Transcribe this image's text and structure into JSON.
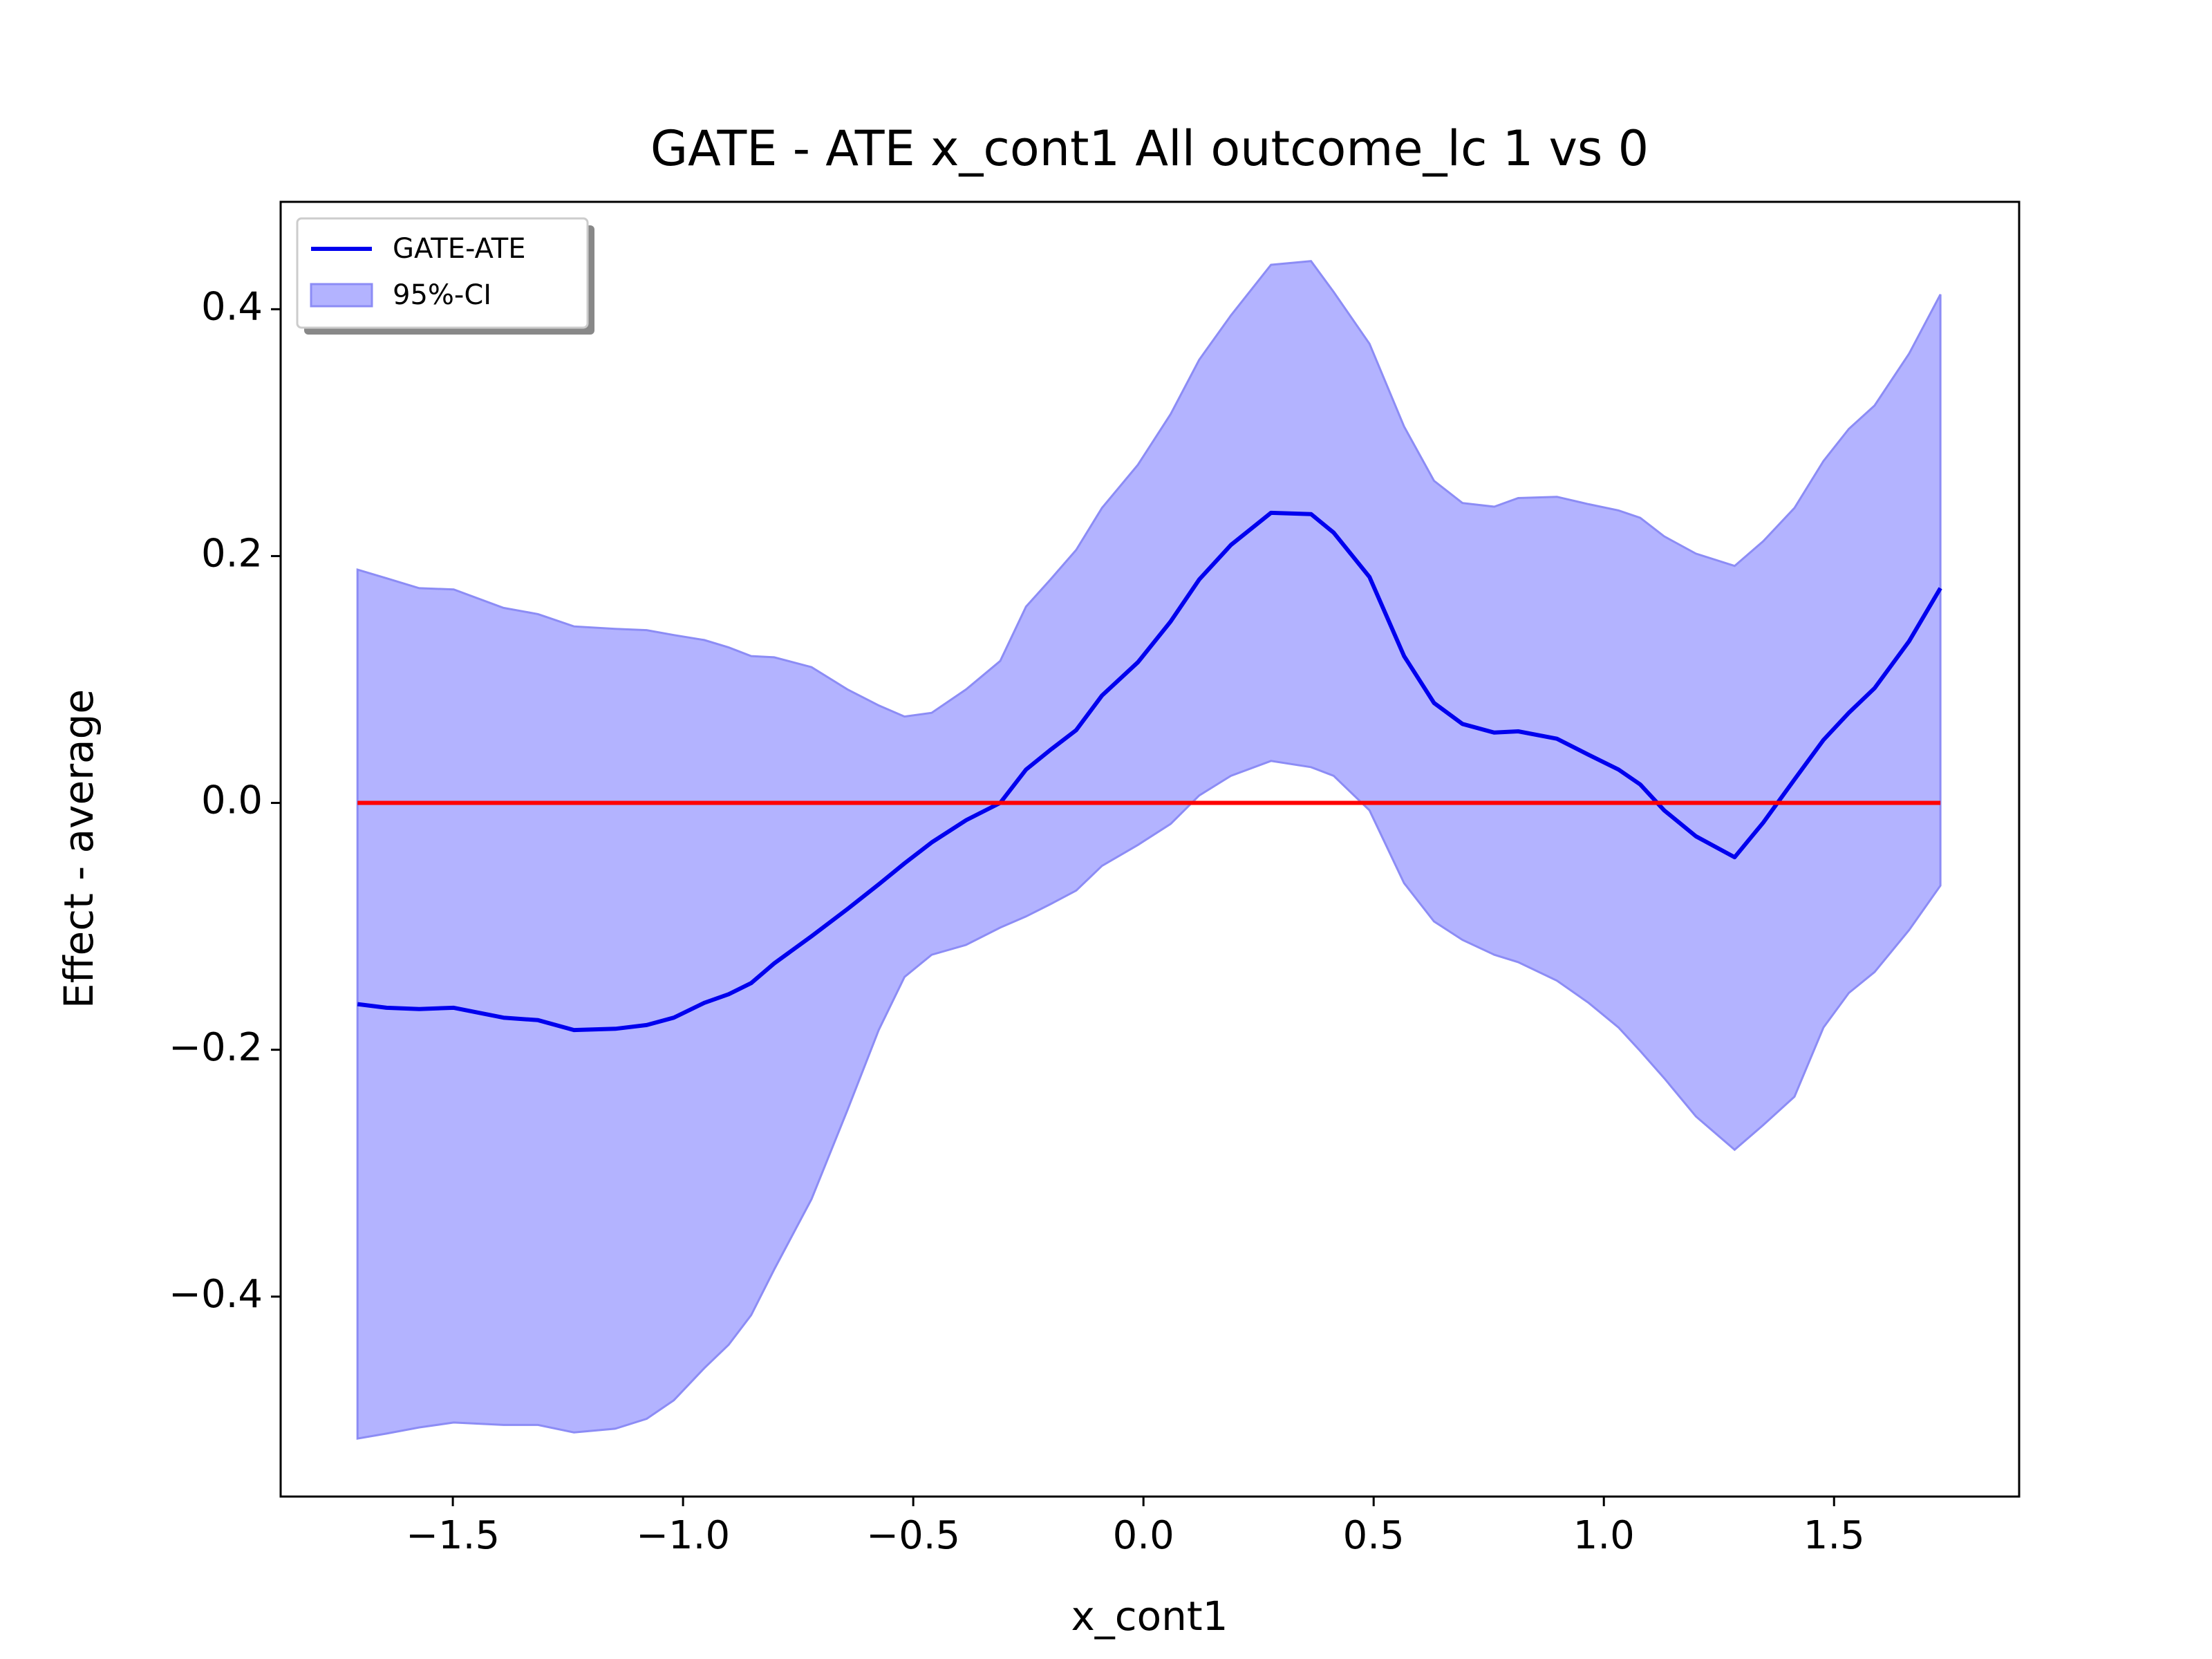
{
  "chart_data": {
    "type": "line",
    "title": "GATE - ATE x_cont1 All outcome_lc  1 vs 0",
    "x_label": "x_cont1",
    "y_label": "Effect - average",
    "x": [
      -1.707,
      -1.644,
      -1.573,
      -1.498,
      -1.39,
      -1.315,
      -1.237,
      -1.147,
      -1.079,
      -1.02,
      -0.954,
      -0.901,
      -0.852,
      -0.802,
      -0.721,
      -0.643,
      -0.575,
      -0.519,
      -0.46,
      -0.385,
      -0.311,
      -0.255,
      -0.202,
      -0.146,
      -0.09,
      -0.012,
      0.059,
      0.121,
      0.19,
      0.277,
      0.364,
      0.413,
      0.491,
      0.566,
      0.631,
      0.693,
      0.762,
      0.814,
      0.898,
      0.967,
      1.032,
      1.079,
      1.131,
      1.2,
      1.284,
      1.346,
      1.414,
      1.477,
      1.532,
      1.588,
      1.663,
      1.731
    ],
    "series": [
      {
        "name": "GATE-ATE",
        "color": "#0000ee",
        "values": [
          -0.163,
          -0.166,
          -0.167,
          -0.166,
          -0.174,
          -0.176,
          -0.184,
          -0.183,
          -0.18,
          -0.174,
          -0.162,
          -0.155,
          -0.146,
          -0.13,
          -0.108,
          -0.086,
          -0.066,
          -0.049,
          -0.032,
          -0.014,
          0.0,
          0.027,
          0.043,
          0.059,
          0.087,
          0.114,
          0.147,
          0.181,
          0.209,
          0.235,
          0.234,
          0.219,
          0.183,
          0.119,
          0.081,
          0.064,
          0.057,
          0.058,
          0.052,
          0.039,
          0.027,
          0.015,
          -0.006,
          -0.027,
          -0.044,
          -0.016,
          0.019,
          0.051,
          0.073,
          0.093,
          0.131,
          0.174
        ]
      }
    ],
    "band": {
      "name": "95%-CI",
      "color": "#b3b3ff",
      "edge_color": "#8c8cf5",
      "upper": [
        0.189,
        0.182,
        0.174,
        0.173,
        0.158,
        0.153,
        0.143,
        0.141,
        0.14,
        0.136,
        0.132,
        0.126,
        0.119,
        0.118,
        0.11,
        0.092,
        0.079,
        0.07,
        0.073,
        0.092,
        0.115,
        0.159,
        0.181,
        0.205,
        0.239,
        0.274,
        0.315,
        0.359,
        0.395,
        0.436,
        0.439,
        0.414,
        0.372,
        0.305,
        0.261,
        0.243,
        0.24,
        0.247,
        0.248,
        0.242,
        0.237,
        0.231,
        0.216,
        0.202,
        0.192,
        0.212,
        0.239,
        0.277,
        0.303,
        0.322,
        0.364,
        0.412
      ],
      "lower": [
        -0.515,
        -0.511,
        -0.506,
        -0.502,
        -0.504,
        -0.504,
        -0.51,
        -0.507,
        -0.499,
        -0.484,
        -0.458,
        -0.439,
        -0.415,
        -0.378,
        -0.321,
        -0.249,
        -0.184,
        -0.141,
        -0.123,
        -0.115,
        -0.101,
        -0.092,
        -0.082,
        -0.071,
        -0.051,
        -0.034,
        -0.017,
        0.006,
        0.022,
        0.034,
        0.029,
        0.022,
        -0.006,
        -0.065,
        -0.096,
        -0.111,
        -0.123,
        -0.129,
        -0.144,
        -0.162,
        -0.182,
        -0.201,
        -0.223,
        -0.254,
        -0.281,
        -0.261,
        -0.238,
        -0.182,
        -0.154,
        -0.137,
        -0.103,
        -0.067
      ]
    },
    "reference_line": {
      "color": "#ff0000",
      "x": [
        -1.707,
        1.731
      ],
      "values": [
        0,
        0
      ]
    },
    "xlim": [
      -1.874,
      1.902
    ],
    "ylim": [
      -0.562,
      0.487
    ],
    "xticks": [
      {
        "value": -1.5,
        "label": "−1.5"
      },
      {
        "value": -1.0,
        "label": "−1.0"
      },
      {
        "value": -0.5,
        "label": "−0.5"
      },
      {
        "value": 0.0,
        "label": "0.0"
      },
      0.5,
      {
        "value": 1.0,
        "label": "1.0"
      },
      1.5
    ],
    "yticks": [
      {
        "value": -0.4,
        "label": "−0.4"
      },
      {
        "value": -0.2,
        "label": "−0.2"
      },
      {
        "value": 0.0,
        "label": "0.0"
      },
      0.2,
      0.4
    ],
    "grid": false,
    "legend": "upper left"
  }
}
